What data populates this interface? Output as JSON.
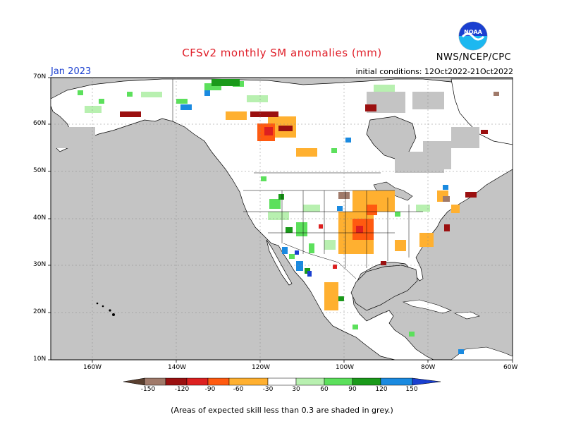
{
  "header": {
    "title": "CFSv2 monthly SM anomalies (mm)",
    "month": "Jan 2023",
    "initial_conditions": "initial conditions: 12Oct2022-21Oct2022",
    "agency": "NWS/NCEP/CPC",
    "logo_text": "NOAA"
  },
  "axes": {
    "lat_labels": [
      "70N",
      "60N",
      "50N",
      "40N",
      "30N",
      "20N",
      "10N"
    ],
    "lon_labels": [
      "160W",
      "140W",
      "120W",
      "100W",
      "80W",
      "60W"
    ]
  },
  "colorbar": {
    "labels": [
      "-150",
      "-120",
      "-90",
      "-60",
      "-30",
      "30",
      "60",
      "90",
      "120",
      "150"
    ],
    "colors": [
      "#5a3f2f",
      "#a07a6a",
      "#9b1010",
      "#dd2020",
      "#ff5a10",
      "#ffb030",
      "#ffffff",
      "#b8f0b0",
      "#5ce05c",
      "#1a9a1a",
      "#1a8ae0",
      "#1a3fd0"
    ]
  },
  "colors": {
    "land_background": "#ffffff",
    "low_skill_grey": "#c4c4c4",
    "title_red": "#e0202a",
    "month_blue": "#1a3fd0"
  },
  "footnote": "(Areas of expected skill less than 0.3 are shaded in grey.)"
}
